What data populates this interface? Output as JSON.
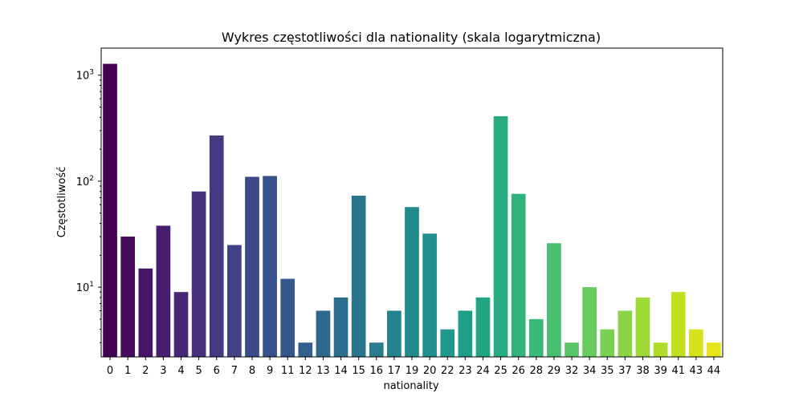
{
  "chart_data": {
    "type": "bar",
    "title": "Wykres częstotliwości dla nationality (skala logarytmiczna)",
    "xlabel": "nationality",
    "ylabel": "Częstotliwość",
    "yscale": "log",
    "ylim": [
      2.2,
      1800
    ],
    "yticks": [
      {
        "value": 10,
        "base": "10",
        "exp": "1"
      },
      {
        "value": 100,
        "base": "10",
        "exp": "2"
      },
      {
        "value": 1000,
        "base": "10",
        "exp": "3"
      }
    ],
    "grid": false,
    "legend": "none",
    "categories": [
      "0",
      "1",
      "2",
      "3",
      "4",
      "5",
      "6",
      "7",
      "8",
      "9",
      "11",
      "12",
      "13",
      "14",
      "15",
      "16",
      "17",
      "19",
      "20",
      "22",
      "23",
      "24",
      "25",
      "26",
      "28",
      "29",
      "32",
      "34",
      "35",
      "37",
      "38",
      "39",
      "41",
      "43",
      "44"
    ],
    "values": [
      1280,
      30,
      15,
      38,
      9,
      80,
      270,
      25,
      110,
      112,
      12,
      3,
      6,
      8,
      73,
      3,
      6,
      57,
      32,
      4,
      6,
      8,
      410,
      76,
      5,
      26,
      3,
      10,
      4,
      6,
      8,
      3,
      9,
      4,
      3
    ],
    "colors": [
      "#440154",
      "#460c5e",
      "#471567",
      "#481f70",
      "#472876",
      "#45317c",
      "#423980",
      "#3f4285",
      "#3c4a89",
      "#38518b",
      "#35598c",
      "#31608d",
      "#2e678e",
      "#2c6e8e",
      "#29758e",
      "#277c8e",
      "#24838e",
      "#228a8d",
      "#20918c",
      "#1f978b",
      "#1f9e89",
      "#21a585",
      "#27ac81",
      "#30b27c",
      "#3bb977",
      "#48bf70",
      "#57c567",
      "#67cb5e",
      "#78d152",
      "#8ad546",
      "#9dda38",
      "#b0dd2b",
      "#c2e01f",
      "#d5e21c",
      "#e7e419"
    ]
  }
}
